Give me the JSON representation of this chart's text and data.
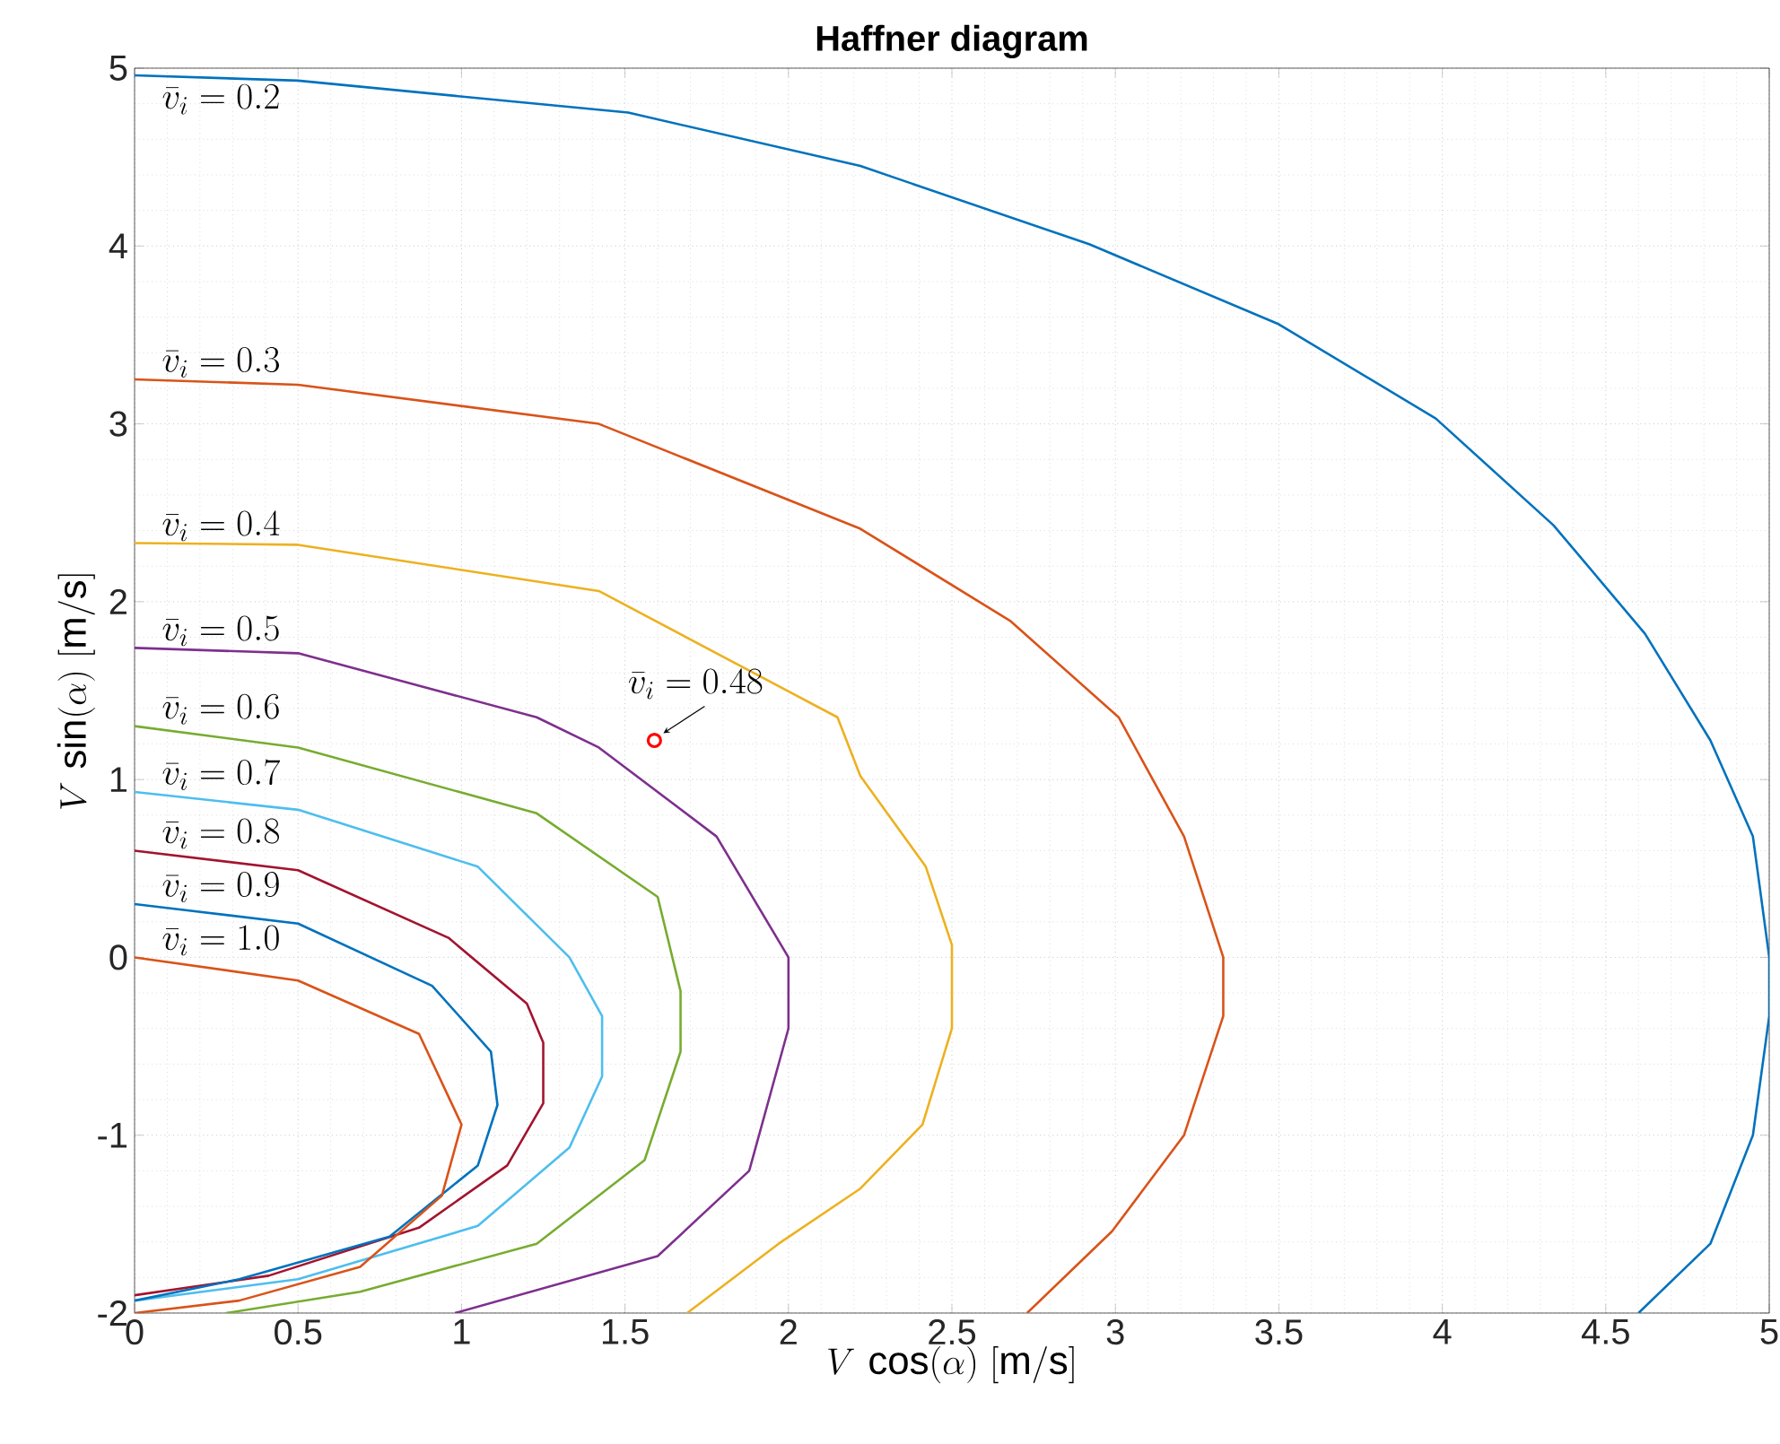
{
  "chart_data": {
    "type": "line",
    "title": "Haffner diagram",
    "xlabel": "V\\,\\cos(\\alpha)\\ [\\mathrm{m/s}]",
    "ylabel": "V\\,\\sin(\\alpha)\\ [\\mathrm{m/s}]",
    "xlim": [
      0,
      5
    ],
    "ylim": [
      -2,
      5
    ],
    "xticks": [
      0,
      0.5,
      1,
      1.5,
      2,
      2.5,
      3,
      3.5,
      4,
      4.5,
      5
    ],
    "yticks": [
      -2,
      -1,
      0,
      1,
      2,
      3,
      4,
      5
    ],
    "grid": true,
    "series": [
      {
        "name": "\\bar{v}_i = 0.2",
        "color": "#0072bd",
        "x": [
          0,
          0.5,
          1.51,
          2.22,
          2.92,
          3.5,
          3.98,
          4.34,
          4.62,
          4.82,
          4.95,
          5.0,
          5.0,
          4.95,
          4.82,
          4.6
        ],
        "values": [
          4.96,
          4.93,
          4.75,
          4.45,
          4.01,
          3.56,
          3.03,
          2.43,
          1.82,
          1.22,
          0.68,
          0,
          -0.33,
          -1.0,
          -1.61,
          -2.0
        ]
      },
      {
        "name": "\\bar{v}_i = 0.3",
        "color": "#d95319",
        "x": [
          0,
          0.5,
          1.42,
          2.22,
          2.68,
          3.01,
          3.21,
          3.33,
          3.33,
          3.21,
          2.99,
          2.73
        ],
        "values": [
          3.25,
          3.22,
          3.0,
          2.41,
          1.89,
          1.35,
          0.68,
          0,
          -0.33,
          -1.0,
          -1.54,
          -2.0
        ]
      },
      {
        "name": "\\bar{v}_i = 0.4",
        "color": "#edb120",
        "x": [
          0,
          0.5,
          1.42,
          2.15,
          2.22,
          2.42,
          2.5,
          2.5,
          2.41,
          2.22,
          1.97,
          1.69
        ],
        "values": [
          2.33,
          2.32,
          2.06,
          1.35,
          1.02,
          0.51,
          0.07,
          -0.4,
          -0.94,
          -1.3,
          -1.61,
          -2.0
        ]
      },
      {
        "name": "\\bar{v}_i = 0.5",
        "color": "#7e2f8e",
        "x": [
          0,
          0.5,
          1.23,
          1.42,
          1.78,
          2.0,
          2.0,
          1.88,
          1.6,
          0.98
        ],
        "values": [
          1.74,
          1.71,
          1.35,
          1.18,
          0.68,
          0,
          -0.4,
          -1.2,
          -1.68,
          -2.0
        ]
      },
      {
        "name": "\\bar{v}_i = 0.6",
        "color": "#77ac30",
        "x": [
          0,
          0.5,
          1.23,
          1.6,
          1.67,
          1.67,
          1.56,
          1.23,
          0.69,
          0.28
        ],
        "values": [
          1.3,
          1.18,
          0.81,
          0.34,
          -0.19,
          -0.53,
          -1.14,
          -1.61,
          -1.88,
          -2.0
        ]
      },
      {
        "name": "\\bar{v}_i = 0.7",
        "color": "#4dbeee",
        "x": [
          0,
          0.5,
          1.05,
          1.33,
          1.43,
          1.43,
          1.33,
          1.05,
          0.5,
          0
        ],
        "values": [
          0.93,
          0.83,
          0.51,
          0,
          -0.33,
          -0.67,
          -1.07,
          -1.51,
          -1.81,
          -1.93
        ]
      },
      {
        "name": "\\bar{v}_i = 0.8",
        "color": "#a2142f",
        "x": [
          0,
          0.5,
          0.96,
          1.2,
          1.25,
          1.25,
          1.14,
          0.87,
          0.41,
          0
        ],
        "values": [
          0.6,
          0.49,
          0.11,
          -0.26,
          -0.48,
          -0.82,
          -1.17,
          -1.52,
          -1.79,
          -1.9
        ]
      },
      {
        "name": "\\bar{v}_i = 0.9",
        "color": "#0072bd",
        "x": [
          0,
          0.5,
          0.91,
          1.09,
          1.11,
          1.05,
          0.78,
          0.32,
          0
        ],
        "values": [
          0.3,
          0.19,
          -0.16,
          -0.53,
          -0.83,
          -1.17,
          -1.57,
          -1.81,
          -1.93
        ]
      },
      {
        "name": "\\bar{v}_i = 1.0",
        "color": "#d95319",
        "x": [
          0,
          0.5,
          0.87,
          1.0,
          0.94,
          0.69,
          0.32,
          0
        ],
        "values": [
          0,
          -0.13,
          -0.43,
          -0.94,
          -1.34,
          -1.74,
          -1.93,
          -2.0
        ]
      },
      {
        "type": "scatter",
        "marker": "circle",
        "color": "#ff0000",
        "x": [
          1.59
        ],
        "values": [
          1.22
        ]
      }
    ],
    "annotations": [
      {
        "text": "\\bar{v}_i = 0.48",
        "x": 1.59,
        "y": 1.22
      }
    ]
  }
}
